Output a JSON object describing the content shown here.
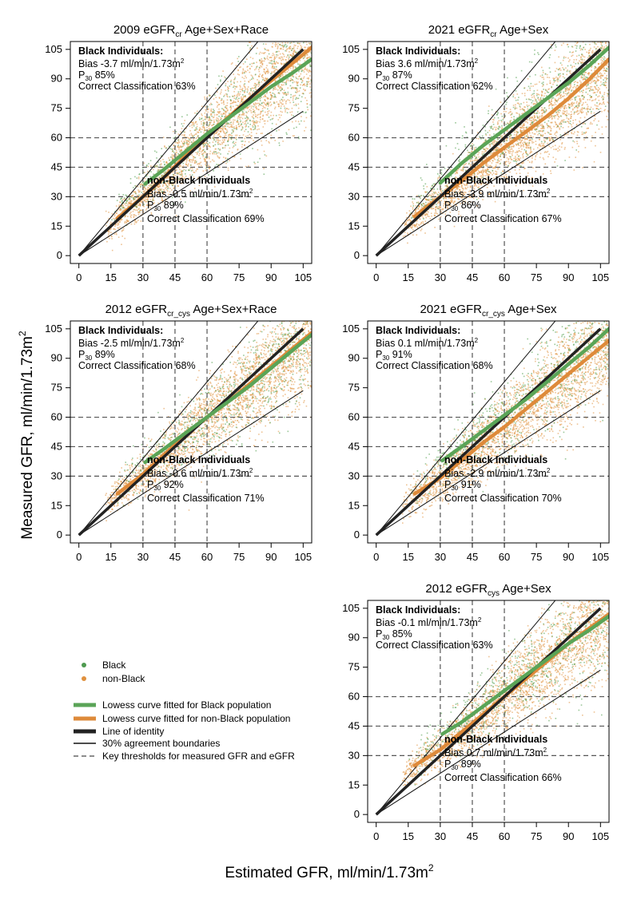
{
  "figure": {
    "ylabel": "Measured GFR, ml/min/1.73m",
    "ylabel_sup": "2",
    "xlabel": "Estimated GFR, ml/min/1.73m",
    "xlabel_sup": "2"
  },
  "legend": {
    "items": [
      {
        "kind": "point",
        "color": "#4e9a50",
        "label": "Black"
      },
      {
        "kind": "point",
        "color": "#e0913e",
        "label": "non-Black"
      },
      {
        "kind": "line",
        "color": "#5aa457",
        "label": "Lowess curve fitted for Black population"
      },
      {
        "kind": "line",
        "color": "#de8a3a",
        "label": "Lowess curve fitted for non-Black population"
      },
      {
        "kind": "line",
        "color": "#222222",
        "label": "Line of identity"
      },
      {
        "kind": "thin",
        "color": "#111111",
        "label": "30% agreement boundaries"
      },
      {
        "kind": "dash",
        "color": "#666666",
        "label": "Key thresholds for measured GFR and eGFR"
      }
    ]
  },
  "colors": {
    "black_points": "#5aa457",
    "nonblack_points": "#e0913e",
    "black_curve": "#5aa457",
    "nonblack_curve": "#de8a3a",
    "identity": "#222222"
  },
  "chart_data": [
    {
      "type": "scatter",
      "title_main": "2009 eGFR",
      "title_sub": "cr",
      "title_rest": " Age+Sex+Race",
      "xlim": [
        -4,
        109
      ],
      "ylim": [
        -4,
        109
      ],
      "xticks": [
        0,
        15,
        30,
        45,
        60,
        75,
        90,
        105
      ],
      "yticks": [
        0,
        15,
        30,
        45,
        60,
        75,
        90,
        105
      ],
      "thresholds_x": [
        30,
        45,
        60
      ],
      "thresholds_y": [
        30,
        45,
        60
      ],
      "black": {
        "heading": "Black Individuals:",
        "bias": "Bias -3.7 ml/min/1.73m",
        "p30_value": " 85%",
        "cc": "Correct Classification 63%"
      },
      "nonblack": {
        "heading": "non-Black Individuals",
        "bias": "Bias -0.5 ml/min/1.73m",
        "p30_value": " 89%",
        "cc": "Correct Classification 69%"
      },
      "black_curve": [
        [
          31,
          36.5
        ],
        [
          40,
          44
        ],
        [
          50,
          53
        ],
        [
          60,
          62
        ],
        [
          70,
          70
        ],
        [
          80,
          78
        ],
        [
          90,
          86
        ],
        [
          100,
          93
        ],
        [
          109,
          100
        ]
      ],
      "nonblack_curve": [
        [
          18,
          19
        ],
        [
          30,
          30
        ],
        [
          40,
          40
        ],
        [
          50,
          51
        ],
        [
          60,
          61
        ],
        [
          70,
          70.5
        ],
        [
          80,
          80
        ],
        [
          90,
          89
        ],
        [
          100,
          98
        ],
        [
          109,
          106
        ]
      ]
    },
    {
      "type": "scatter",
      "title_main": "2021 eGFR",
      "title_sub": "cr",
      "title_rest": " Age+Sex",
      "xlim": [
        -4,
        109
      ],
      "ylim": [
        -4,
        109
      ],
      "xticks": [
        0,
        15,
        30,
        45,
        60,
        75,
        90,
        105
      ],
      "yticks": [
        0,
        15,
        30,
        45,
        60,
        75,
        90,
        105
      ],
      "thresholds_x": [
        30,
        45,
        60
      ],
      "thresholds_y": [
        30,
        45,
        60
      ],
      "black": {
        "heading": "Black Individuals:",
        "bias": "Bias 3.6 ml/min/1.73m",
        "p30_value": " 87%",
        "cc": "Correct Classification 62%"
      },
      "nonblack": {
        "heading": "non-Black Individuals",
        "bias": "Bias -3.9 ml/min/1.73m",
        "p30_value": " 86%",
        "cc": "Correct Classification 67%"
      },
      "black_curve": [
        [
          30,
          37
        ],
        [
          40,
          47
        ],
        [
          50,
          56
        ],
        [
          60,
          64
        ],
        [
          70,
          72
        ],
        [
          80,
          80
        ],
        [
          90,
          88
        ],
        [
          100,
          97
        ],
        [
          109,
          106
        ]
      ],
      "nonblack_curve": [
        [
          18,
          20
        ],
        [
          30,
          30
        ],
        [
          40,
          38
        ],
        [
          50,
          47
        ],
        [
          60,
          55
        ],
        [
          70,
          63
        ],
        [
          80,
          71
        ],
        [
          90,
          80
        ],
        [
          100,
          90
        ],
        [
          109,
          100
        ]
      ]
    },
    {
      "type": "scatter",
      "title_main": "2012 eGFR",
      "title_sub": "cr_cys",
      "title_rest": " Age+Sex+Race",
      "xlim": [
        -4,
        109
      ],
      "ylim": [
        -4,
        109
      ],
      "xticks": [
        0,
        15,
        30,
        45,
        60,
        75,
        90,
        105
      ],
      "yticks": [
        0,
        15,
        30,
        45,
        60,
        75,
        90,
        105
      ],
      "thresholds_x": [
        30,
        45,
        60
      ],
      "thresholds_y": [
        30,
        45,
        60
      ],
      "black": {
        "heading": "Black Individuals:",
        "bias": "Bias -2.5 ml/min/1.73m",
        "p30_value": " 89%",
        "cc": "Correct Classification 68%"
      },
      "nonblack": {
        "heading": "non-Black Individuals",
        "bias": "Bias -0.6 ml/min/1.73m",
        "p30_value": " 92%",
        "cc": "Correct Classification 71%"
      },
      "black_curve": [
        [
          31,
          37
        ],
        [
          40,
          44
        ],
        [
          50,
          52
        ],
        [
          60,
          60
        ],
        [
          70,
          68
        ],
        [
          80,
          76
        ],
        [
          90,
          85
        ],
        [
          100,
          94
        ],
        [
          109,
          102
        ]
      ],
      "nonblack_curve": [
        [
          18,
          21
        ],
        [
          30,
          31
        ],
        [
          40,
          41
        ],
        [
          50,
          51
        ],
        [
          60,
          60
        ],
        [
          70,
          68
        ],
        [
          80,
          77
        ],
        [
          90,
          86
        ],
        [
          100,
          95
        ],
        [
          109,
          103
        ]
      ]
    },
    {
      "type": "scatter",
      "title_main": "2021 eGFR",
      "title_sub": "cr_cys",
      "title_rest": " Age+Sex",
      "xlim": [
        -4,
        109
      ],
      "ylim": [
        -4,
        109
      ],
      "xticks": [
        0,
        15,
        30,
        45,
        60,
        75,
        90,
        105
      ],
      "yticks": [
        0,
        15,
        30,
        45,
        60,
        75,
        90,
        105
      ],
      "thresholds_x": [
        30,
        45,
        60
      ],
      "thresholds_y": [
        30,
        45,
        60
      ],
      "black": {
        "heading": "Black Individuals:",
        "bias": "Bias 0.1 ml/min/1.73m",
        "p30_value": " 91%",
        "cc": "Correct Classification 68%"
      },
      "nonblack": {
        "heading": "non-Black Individuals",
        "bias": "Bias -2.9 ml/min/1.73m",
        "p30_value": " 91%",
        "cc": "Correct Classification 70%"
      },
      "black_curve": [
        [
          31,
          38
        ],
        [
          40,
          45
        ],
        [
          50,
          53
        ],
        [
          60,
          61
        ],
        [
          70,
          69
        ],
        [
          80,
          78
        ],
        [
          90,
          87
        ],
        [
          100,
          96
        ],
        [
          109,
          105
        ]
      ],
      "nonblack_curve": [
        [
          18,
          21
        ],
        [
          30,
          29
        ],
        [
          40,
          38
        ],
        [
          50,
          47
        ],
        [
          60,
          55
        ],
        [
          70,
          64
        ],
        [
          80,
          73
        ],
        [
          90,
          82
        ],
        [
          100,
          91
        ],
        [
          109,
          99
        ]
      ]
    },
    {
      "type": "scatter",
      "title_main": "2012 eGFR",
      "title_sub": "cys",
      "title_rest": " Age+Sex",
      "xlim": [
        -4,
        109
      ],
      "ylim": [
        -4,
        109
      ],
      "xticks": [
        0,
        15,
        30,
        45,
        60,
        75,
        90,
        105
      ],
      "yticks": [
        0,
        15,
        30,
        45,
        60,
        75,
        90,
        105
      ],
      "thresholds_x": [
        30,
        45,
        60
      ],
      "thresholds_y": [
        30,
        45,
        60
      ],
      "black": {
        "heading": "Black Individuals:",
        "bias": "Bias -0.1 ml/min/1.73m",
        "p30_value": " 85%",
        "cc": "Correct Classification 63%"
      },
      "nonblack": {
        "heading": "non-Black Individuals",
        "bias": "Bias 0.7 ml/min/1.73m",
        "p30_value": " 89%",
        "cc": "Correct Classification 66%"
      },
      "black_curve": [
        [
          31,
          41
        ],
        [
          40,
          47
        ],
        [
          50,
          55
        ],
        [
          60,
          63
        ],
        [
          70,
          71
        ],
        [
          80,
          79
        ],
        [
          90,
          87
        ],
        [
          100,
          94
        ],
        [
          109,
          101
        ]
      ],
      "nonblack_curve": [
        [
          18,
          25
        ],
        [
          30,
          33
        ],
        [
          40,
          42
        ],
        [
          50,
          51
        ],
        [
          60,
          60
        ],
        [
          70,
          69
        ],
        [
          80,
          78
        ],
        [
          90,
          87
        ],
        [
          100,
          95
        ],
        [
          109,
          102
        ]
      ]
    }
  ]
}
